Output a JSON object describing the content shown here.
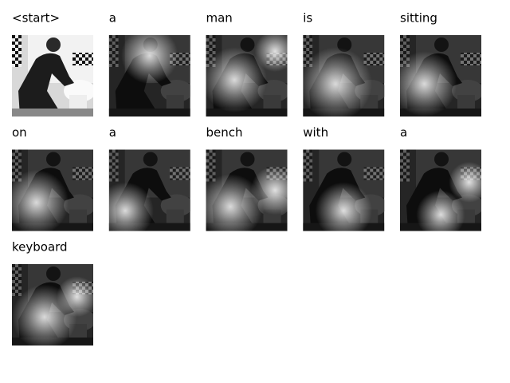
{
  "tokens": [
    "<start>",
    "a",
    "man",
    "is",
    "sitting",
    "on",
    "a",
    "bench",
    "with",
    "a",
    "keyboard"
  ]
}
